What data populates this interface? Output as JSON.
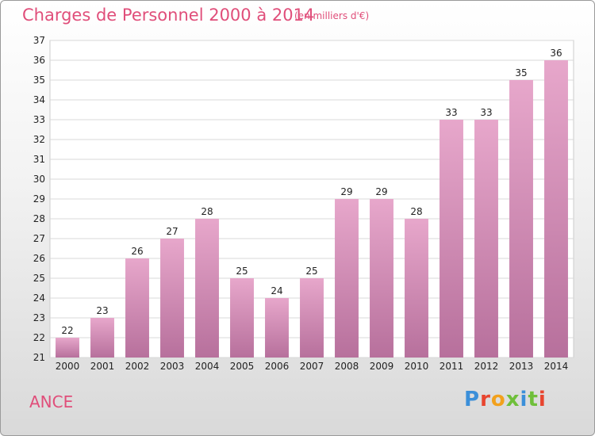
{
  "header": {
    "title": "Charges de Personnel 2000 à 2014",
    "subtitle": "(en milliers d'€)"
  },
  "footer": {
    "commune": "ANCE",
    "logo": "Proxiti",
    "logo_colors": [
      "#3b8fd9",
      "#e8452f",
      "#f2a11d",
      "#6fbf3a",
      "#3b8fd9",
      "#6fbf3a",
      "#e8452f"
    ]
  },
  "chart_data": {
    "type": "bar",
    "title": "Charges de Personnel 2000 à 2014",
    "subtitle": "(en milliers d'€)",
    "categories": [
      "2000",
      "2001",
      "2002",
      "2003",
      "2004",
      "2005",
      "2006",
      "2007",
      "2008",
      "2009",
      "2010",
      "2011",
      "2012",
      "2013",
      "2014"
    ],
    "values": [
      22,
      23,
      26,
      27,
      28,
      25,
      24,
      25,
      29,
      29,
      28,
      33,
      33,
      35,
      36
    ],
    "ylim": [
      21,
      37
    ],
    "yticks": [
      21,
      22,
      23,
      24,
      25,
      26,
      27,
      28,
      29,
      30,
      31,
      32,
      33,
      34,
      35,
      36,
      37
    ],
    "grid": true,
    "bar_color": "#d98ab4"
  }
}
